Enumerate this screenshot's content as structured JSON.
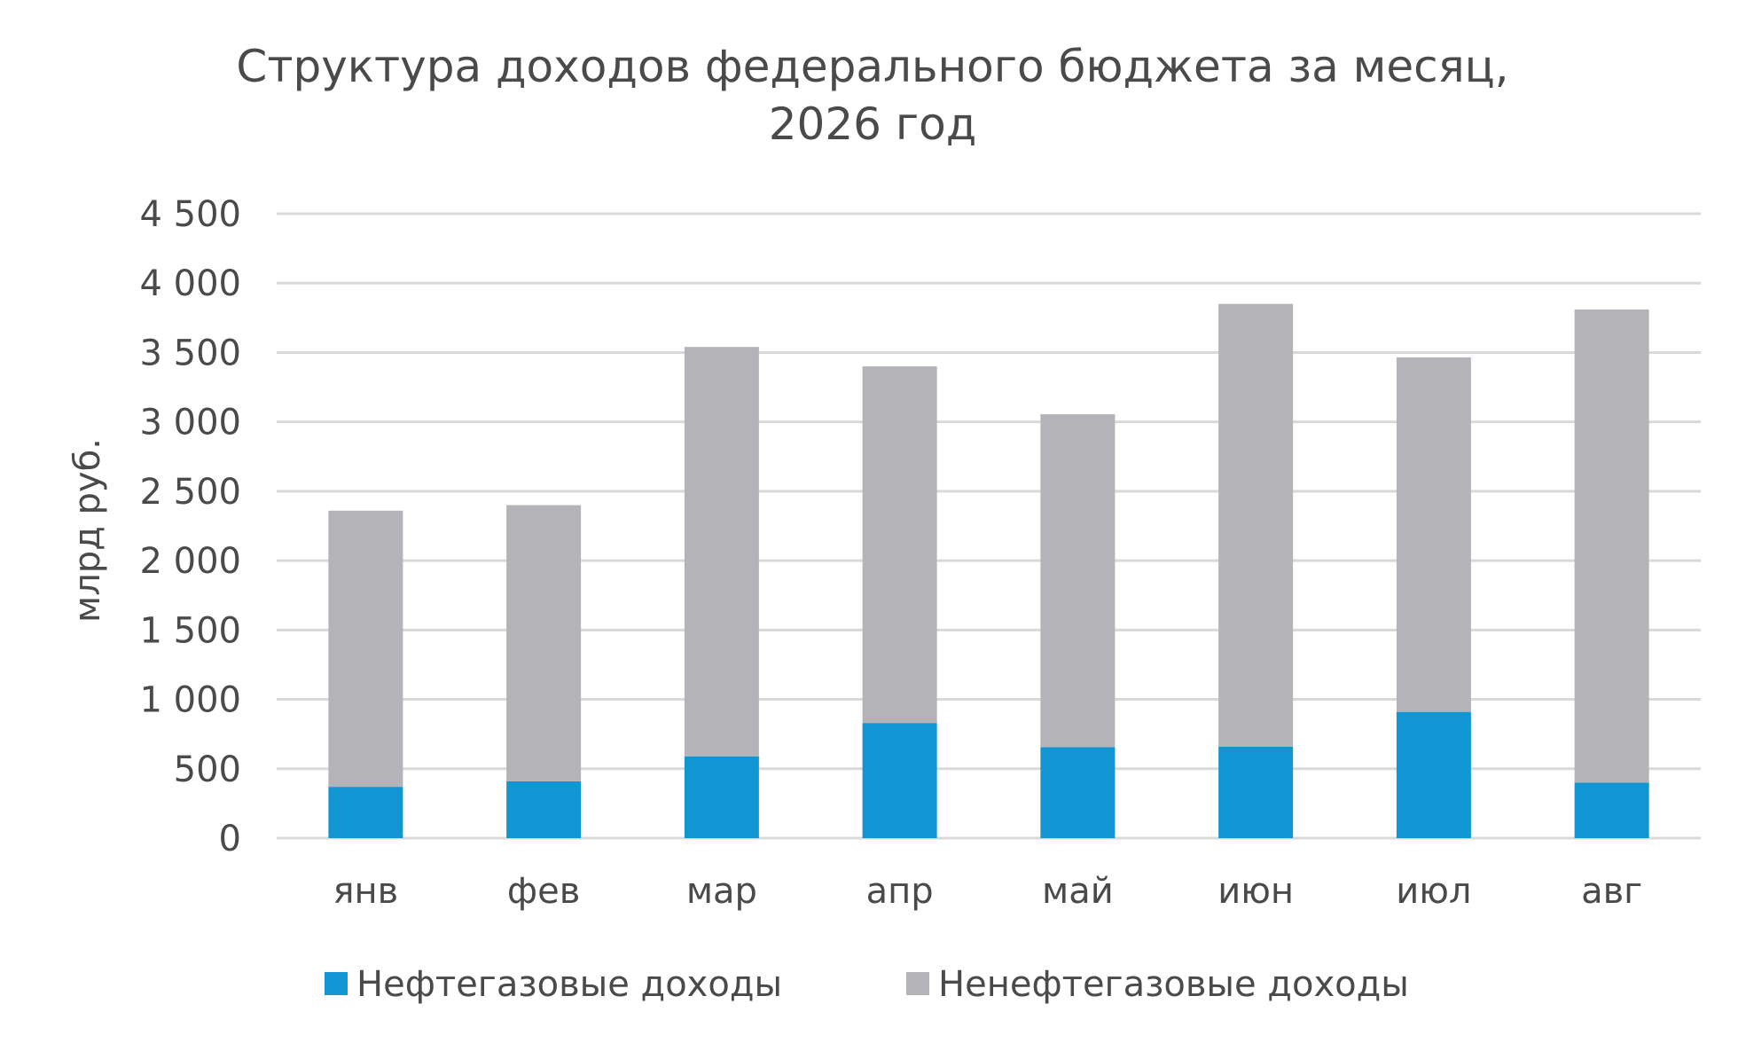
{
  "chart_data": {
    "type": "bar",
    "stacked": true,
    "title": "Структура доходов федерального бюджета за месяц,",
    "subtitle": "2026 год",
    "ylabel": "млрд руб.",
    "xlabel": "",
    "ylim": [
      0,
      4500
    ],
    "yticks": [
      0,
      500,
      1000,
      1500,
      2000,
      2500,
      3000,
      3500,
      4000,
      4500
    ],
    "ytick_labels": [
      "0",
      "500",
      "1 000",
      "1 500",
      "2 000",
      "2 500",
      "3 000",
      "3 500",
      "4 000",
      "4 500"
    ],
    "grid": true,
    "legend_position": "bottom",
    "categories": [
      "янв",
      "фев",
      "мар",
      "апр",
      "май",
      "июн",
      "июл",
      "авг"
    ],
    "series": [
      {
        "name": "Нефтегазовые доходы",
        "color": "#1295d3",
        "values": [
          370,
          410,
          590,
          830,
          655,
          660,
          910,
          400
        ]
      },
      {
        "name": "Ненефтегазовые доходы",
        "color": "#b4b4b8",
        "values": [
          1990,
          1990,
          2950,
          2570,
          2400,
          3190,
          2555,
          3410
        ]
      }
    ]
  }
}
